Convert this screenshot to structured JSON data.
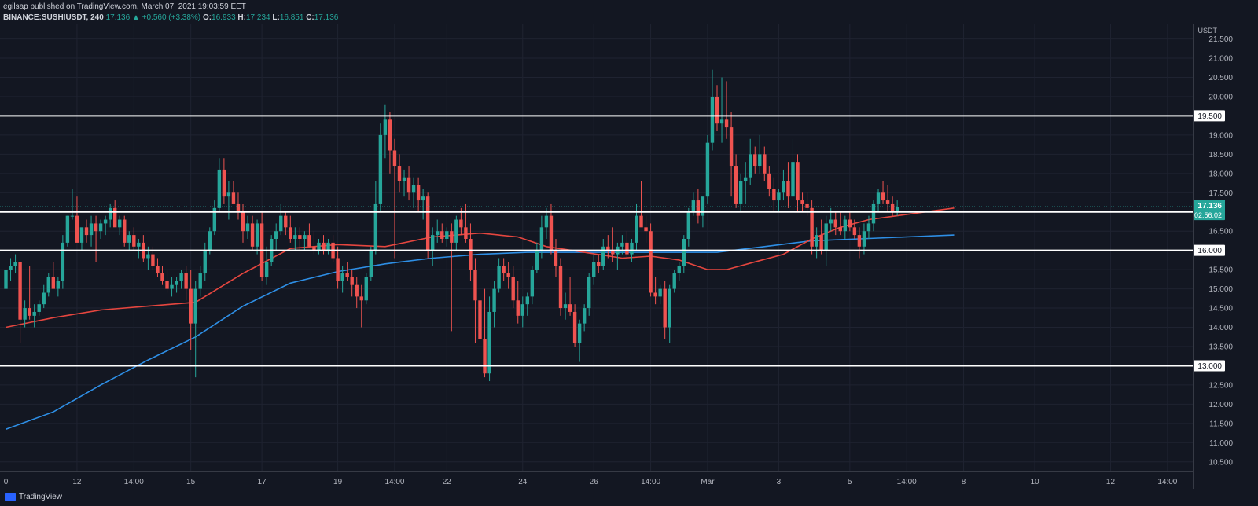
{
  "header": {
    "line1": "egilsap published on TradingView.com, March 07, 2021 19:03:59 EET",
    "symbol": "BINANCE:SUSHIUSDT, 240",
    "last": "17.136",
    "change": "▲ +0.560 (+3.38%)",
    "o_label": "O:",
    "o": "16.933",
    "h_label": "H:",
    "h": "17.234",
    "l_label": "L:",
    "l": "16.851",
    "c_label": "C:",
    "c": "17.136"
  },
  "footer": {
    "brand": "TradingView"
  },
  "colors": {
    "background": "#131722",
    "grid": "#1f2331",
    "up": "#26a69a",
    "down": "#ef5350",
    "ma_short": "#e5463f",
    "ma_long": "#2e8fe6",
    "level_line": "#ffffff",
    "price_tag": "#26a69a"
  },
  "chart_data": {
    "type": "candlestick",
    "symbol": "BINANCE:SUSHIUSDT",
    "interval": "240",
    "currency": "USDT",
    "ylim": [
      10.25,
      21.9
    ],
    "y_ticks": [
      "10.500",
      "11.000",
      "11.500",
      "12.000",
      "12.500",
      "13.000",
      "13.500",
      "14.000",
      "14.500",
      "15.000",
      "15.500",
      "16.000",
      "16.500",
      "17.000",
      "17.500",
      "18.000",
      "18.500",
      "19.000",
      "19.500",
      "20.000",
      "20.500",
      "21.000",
      "21.500"
    ],
    "x_ticks": [
      {
        "label": "0",
        "i": 0
      },
      {
        "label": "12",
        "i": 15
      },
      {
        "label": "14:00",
        "i": 27
      },
      {
        "label": "15",
        "i": 39
      },
      {
        "label": "17",
        "i": 54
      },
      {
        "label": "19",
        "i": 70
      },
      {
        "label": "14:00",
        "i": 82
      },
      {
        "label": "22",
        "i": 93
      },
      {
        "label": "24",
        "i": 109
      },
      {
        "label": "26",
        "i": 124
      },
      {
        "label": "14:00",
        "i": 136
      },
      {
        "label": "Mar",
        "i": 148
      },
      {
        "label": "3",
        "i": 163
      },
      {
        "label": "5",
        "i": 178
      },
      {
        "label": "14:00",
        "i": 190
      },
      {
        "label": "8",
        "i": 202
      },
      {
        "label": "10",
        "i": 217
      },
      {
        "label": "12",
        "i": 233
      },
      {
        "label": "14:00",
        "i": 245
      }
    ],
    "levels": [
      19.5,
      17.136,
      17.0,
      16.0,
      13.0
    ],
    "level_labels": [
      "19.500",
      "17.000",
      "16.000",
      "13.000"
    ],
    "last_price": "17.136",
    "countdown": "02:56:02",
    "candles": [
      [
        15.0,
        15.6,
        14.5,
        15.5
      ],
      [
        15.5,
        15.8,
        15.2,
        15.6
      ],
      [
        15.6,
        15.9,
        15.4,
        15.7
      ],
      [
        15.7,
        15.7,
        13.6,
        14.2
      ],
      [
        14.2,
        14.7,
        14.0,
        14.5
      ],
      [
        14.5,
        15.6,
        14.2,
        14.3
      ],
      [
        14.3,
        14.6,
        14.0,
        14.4
      ],
      [
        14.4,
        14.7,
        14.3,
        14.6
      ],
      [
        14.6,
        15.1,
        14.5,
        14.9
      ],
      [
        14.9,
        15.4,
        14.8,
        15.3
      ],
      [
        15.3,
        15.7,
        15.1,
        15.0
      ],
      [
        15.0,
        15.3,
        14.8,
        15.2
      ],
      [
        15.2,
        16.4,
        15.0,
        16.2
      ],
      [
        16.2,
        16.9,
        16.1,
        16.9
      ],
      [
        16.9,
        17.6,
        16.8,
        16.9
      ],
      [
        16.9,
        17.4,
        16.2,
        16.2
      ],
      [
        16.2,
        16.5,
        16.0,
        16.6
      ],
      [
        16.6,
        16.8,
        16.2,
        16.4
      ],
      [
        16.4,
        16.9,
        16.1,
        16.7
      ],
      [
        16.7,
        16.9,
        15.7,
        16.5
      ],
      [
        16.5,
        16.8,
        16.3,
        16.7
      ],
      [
        16.7,
        16.9,
        16.4,
        16.8
      ],
      [
        16.8,
        17.2,
        16.6,
        17.1
      ],
      [
        17.1,
        17.3,
        16.7,
        16.6
      ],
      [
        16.6,
        16.9,
        16.4,
        16.8
      ],
      [
        16.8,
        16.9,
        16.1,
        16.2
      ],
      [
        16.2,
        16.5,
        16.0,
        16.4
      ],
      [
        16.4,
        16.6,
        16.0,
        16.1
      ],
      [
        16.1,
        16.3,
        15.8,
        16.2
      ],
      [
        16.2,
        16.4,
        15.7,
        15.8
      ],
      [
        15.8,
        16.1,
        15.5,
        15.9
      ],
      [
        15.9,
        16.1,
        15.5,
        15.6
      ],
      [
        15.6,
        15.8,
        15.3,
        15.4
      ],
      [
        15.4,
        15.6,
        15.1,
        15.2
      ],
      [
        15.2,
        15.5,
        14.9,
        15.0
      ],
      [
        15.0,
        15.3,
        14.8,
        15.1
      ],
      [
        15.1,
        15.3,
        14.9,
        15.2
      ],
      [
        15.2,
        15.5,
        15.0,
        15.4
      ],
      [
        15.4,
        15.6,
        14.7,
        15.0
      ],
      [
        15.0,
        15.5,
        13.4,
        14.1
      ],
      [
        14.1,
        15.2,
        12.7,
        15.0
      ],
      [
        15.0,
        15.6,
        14.8,
        15.4
      ],
      [
        15.4,
        16.2,
        15.2,
        16.0
      ],
      [
        16.0,
        16.6,
        15.9,
        16.5
      ],
      [
        16.5,
        17.3,
        16.4,
        17.1
      ],
      [
        17.1,
        18.4,
        17.0,
        18.1
      ],
      [
        18.1,
        18.4,
        17.2,
        17.4
      ],
      [
        17.4,
        17.8,
        16.8,
        17.5
      ],
      [
        17.5,
        17.8,
        17.3,
        17.2
      ],
      [
        17.2,
        17.5,
        16.8,
        17.0
      ],
      [
        17.0,
        17.2,
        16.2,
        16.5
      ],
      [
        16.5,
        16.9,
        16.3,
        16.7
      ],
      [
        16.7,
        16.9,
        16.0,
        16.1
      ],
      [
        16.1,
        16.8,
        15.9,
        16.7
      ],
      [
        16.7,
        17.0,
        15.2,
        15.3
      ],
      [
        15.3,
        16.1,
        15.1,
        15.7
      ],
      [
        15.7,
        16.4,
        15.6,
        16.3
      ],
      [
        16.3,
        16.7,
        16.0,
        16.5
      ],
      [
        16.5,
        17.2,
        16.4,
        16.9
      ],
      [
        16.9,
        17.0,
        16.4,
        16.6
      ],
      [
        16.6,
        16.9,
        16.2,
        16.3
      ],
      [
        16.3,
        16.6,
        16.0,
        16.4
      ],
      [
        16.4,
        16.6,
        16.0,
        16.3
      ],
      [
        16.3,
        16.5,
        16.0,
        16.4
      ],
      [
        16.4,
        16.7,
        16.1,
        16.1
      ],
      [
        16.1,
        16.5,
        15.9,
        16.0
      ],
      [
        16.0,
        16.3,
        15.9,
        16.2
      ],
      [
        16.2,
        16.4,
        15.9,
        16.0
      ],
      [
        16.0,
        16.3,
        15.9,
        16.2
      ],
      [
        16.2,
        16.4,
        15.7,
        15.8
      ],
      [
        15.8,
        16.1,
        15.0,
        15.2
      ],
      [
        15.2,
        15.6,
        14.9,
        15.4
      ],
      [
        15.4,
        15.7,
        15.2,
        15.3
      ],
      [
        15.3,
        15.5,
        14.8,
        15.1
      ],
      [
        15.1,
        15.3,
        14.5,
        14.8
      ],
      [
        14.8,
        15.1,
        14.0,
        14.7
      ],
      [
        14.7,
        15.4,
        14.6,
        15.3
      ],
      [
        15.3,
        16.1,
        15.2,
        16.0
      ],
      [
        16.0,
        17.8,
        15.9,
        17.2
      ],
      [
        17.2,
        19.3,
        17.0,
        19.0
      ],
      [
        19.0,
        19.8,
        18.4,
        19.4
      ],
      [
        19.4,
        19.6,
        18.0,
        18.6
      ],
      [
        18.6,
        18.9,
        15.8,
        18.2
      ],
      [
        18.2,
        18.5,
        17.5,
        17.8
      ],
      [
        17.8,
        18.1,
        17.4,
        17.9
      ],
      [
        17.9,
        18.2,
        17.3,
        17.5
      ],
      [
        17.5,
        17.9,
        17.1,
        17.7
      ],
      [
        17.7,
        17.9,
        17.0,
        17.3
      ],
      [
        17.3,
        17.6,
        16.8,
        17.4
      ],
      [
        17.4,
        17.5,
        15.8,
        16.0
      ],
      [
        16.0,
        16.6,
        15.6,
        16.4
      ],
      [
        16.4,
        16.8,
        16.2,
        16.5
      ],
      [
        16.5,
        16.7,
        16.2,
        16.3
      ],
      [
        16.3,
        16.6,
        16.1,
        16.5
      ],
      [
        16.5,
        16.7,
        13.9,
        16.2
      ],
      [
        16.2,
        16.9,
        16.0,
        16.8
      ],
      [
        16.8,
        17.1,
        16.4,
        16.6
      ],
      [
        16.6,
        17.2,
        16.2,
        16.3
      ],
      [
        16.3,
        16.7,
        15.2,
        15.5
      ],
      [
        15.5,
        15.8,
        13.6,
        14.7
      ],
      [
        14.7,
        15.0,
        11.6,
        13.7
      ],
      [
        13.7,
        15.0,
        12.7,
        12.8
      ],
      [
        12.8,
        14.8,
        12.6,
        14.4
      ],
      [
        14.4,
        15.2,
        14.0,
        15.0
      ],
      [
        15.0,
        15.8,
        14.9,
        15.6
      ],
      [
        15.6,
        15.8,
        15.2,
        15.4
      ],
      [
        15.4,
        15.7,
        15.0,
        15.3
      ],
      [
        15.3,
        15.6,
        14.5,
        14.7
      ],
      [
        14.7,
        15.2,
        14.1,
        14.3
      ],
      [
        14.3,
        14.8,
        14.0,
        14.6
      ],
      [
        14.6,
        14.9,
        14.3,
        14.8
      ],
      [
        14.8,
        15.6,
        14.6,
        15.5
      ],
      [
        15.5,
        16.2,
        15.4,
        16.0
      ],
      [
        16.0,
        16.9,
        15.8,
        16.6
      ],
      [
        16.6,
        17.1,
        16.3,
        16.9
      ],
      [
        16.9,
        17.2,
        15.9,
        16.0
      ],
      [
        16.0,
        16.3,
        15.3,
        15.6
      ],
      [
        15.6,
        15.8,
        14.3,
        14.5
      ],
      [
        14.5,
        14.9,
        14.2,
        14.6
      ],
      [
        14.6,
        15.3,
        14.3,
        14.4
      ],
      [
        14.4,
        14.6,
        13.5,
        13.6
      ],
      [
        13.6,
        14.2,
        13.1,
        14.1
      ],
      [
        14.1,
        14.6,
        13.9,
        14.5
      ],
      [
        14.5,
        15.4,
        14.3,
        15.3
      ],
      [
        15.3,
        15.9,
        15.1,
        15.7
      ],
      [
        15.7,
        15.9,
        15.4,
        15.6
      ],
      [
        15.6,
        16.3,
        15.5,
        16.1
      ],
      [
        16.1,
        16.4,
        15.8,
        16.0
      ],
      [
        16.0,
        16.6,
        15.7,
        15.9
      ],
      [
        15.9,
        16.2,
        15.5,
        16.1
      ],
      [
        16.1,
        16.4,
        15.9,
        16.2
      ],
      [
        16.2,
        16.5,
        15.8,
        15.9
      ],
      [
        15.9,
        16.3,
        15.7,
        16.2
      ],
      [
        16.2,
        17.2,
        16.0,
        16.9
      ],
      [
        16.9,
        17.8,
        16.7,
        16.6
      ],
      [
        16.6,
        16.9,
        16.2,
        16.5
      ],
      [
        16.5,
        16.7,
        14.8,
        14.9
      ],
      [
        14.9,
        15.3,
        14.6,
        14.8
      ],
      [
        14.8,
        15.1,
        14.6,
        15.0
      ],
      [
        15.0,
        15.2,
        13.7,
        14.0
      ],
      [
        14.0,
        15.1,
        13.6,
        15.0
      ],
      [
        15.0,
        15.5,
        14.9,
        15.4
      ],
      [
        15.4,
        15.7,
        15.2,
        15.6
      ],
      [
        15.6,
        16.4,
        15.4,
        16.3
      ],
      [
        16.3,
        17.1,
        16.1,
        17.0
      ],
      [
        17.0,
        17.5,
        16.9,
        17.3
      ],
      [
        17.3,
        17.6,
        16.7,
        16.9
      ],
      [
        16.9,
        17.3,
        16.6,
        17.4
      ],
      [
        17.4,
        19.0,
        17.2,
        18.8
      ],
      [
        18.8,
        20.7,
        18.6,
        20.0
      ],
      [
        20.0,
        20.3,
        19.1,
        19.3
      ],
      [
        19.3,
        20.5,
        18.8,
        19.4
      ],
      [
        19.4,
        20.4,
        18.9,
        19.2
      ],
      [
        19.2,
        19.6,
        17.4,
        18.2
      ],
      [
        18.2,
        18.5,
        17.1,
        17.2
      ],
      [
        17.2,
        18.0,
        17.0,
        17.8
      ],
      [
        17.8,
        18.3,
        17.2,
        17.9
      ],
      [
        17.9,
        18.9,
        17.7,
        18.5
      ],
      [
        18.5,
        18.7,
        18.0,
        18.2
      ],
      [
        18.2,
        19.0,
        18.0,
        18.5
      ],
      [
        18.5,
        18.7,
        17.8,
        18.0
      ],
      [
        18.0,
        18.2,
        17.4,
        17.6
      ],
      [
        17.6,
        17.9,
        17.0,
        17.3
      ],
      [
        17.3,
        17.6,
        17.0,
        17.5
      ],
      [
        17.5,
        18.1,
        17.3,
        17.8
      ],
      [
        17.8,
        18.3,
        17.1,
        17.4
      ],
      [
        17.4,
        18.9,
        17.3,
        18.3
      ],
      [
        18.3,
        18.5,
        17.0,
        17.3
      ],
      [
        17.3,
        17.5,
        17.0,
        17.2
      ],
      [
        17.2,
        17.5,
        16.9,
        17.1
      ],
      [
        17.1,
        17.3,
        15.9,
        16.1
      ],
      [
        16.1,
        16.6,
        15.8,
        16.4
      ],
      [
        16.4,
        16.8,
        15.9,
        16.0
      ],
      [
        16.0,
        16.9,
        15.6,
        16.7
      ],
      [
        16.7,
        17.1,
        16.5,
        16.8
      ],
      [
        16.8,
        17.0,
        16.4,
        16.6
      ],
      [
        16.6,
        17.0,
        16.4,
        16.5
      ],
      [
        16.5,
        16.9,
        16.3,
        16.8
      ],
      [
        16.8,
        17.0,
        16.5,
        16.6
      ],
      [
        16.6,
        16.8,
        16.3,
        16.4
      ],
      [
        16.4,
        16.6,
        15.8,
        16.1
      ],
      [
        16.1,
        16.7,
        15.9,
        16.5
      ],
      [
        16.5,
        16.9,
        16.3,
        16.7
      ],
      [
        16.7,
        17.3,
        16.5,
        17.2
      ],
      [
        17.2,
        17.6,
        17.0,
        17.5
      ],
      [
        17.5,
        17.8,
        17.2,
        17.3
      ],
      [
        17.3,
        17.7,
        17.0,
        17.2
      ],
      [
        17.2,
        17.4,
        16.9,
        17.0
      ],
      [
        17.0,
        17.3,
        16.9,
        17.136
      ]
    ],
    "ma_short": [
      [
        0,
        14.0
      ],
      [
        10,
        14.25
      ],
      [
        20,
        14.45
      ],
      [
        30,
        14.55
      ],
      [
        40,
        14.65
      ],
      [
        50,
        15.4
      ],
      [
        60,
        16.05
      ],
      [
        70,
        16.15
      ],
      [
        80,
        16.1
      ],
      [
        90,
        16.35
      ],
      [
        100,
        16.45
      ],
      [
        108,
        16.35
      ],
      [
        114,
        16.1
      ],
      [
        122,
        15.95
      ],
      [
        130,
        15.8
      ],
      [
        136,
        15.85
      ],
      [
        142,
        15.75
      ],
      [
        148,
        15.5
      ],
      [
        152,
        15.5
      ],
      [
        158,
        15.7
      ],
      [
        164,
        15.9
      ],
      [
        170,
        16.3
      ],
      [
        176,
        16.6
      ],
      [
        182,
        16.8
      ],
      [
        188,
        16.9
      ],
      [
        194,
        17.0
      ],
      [
        200,
        17.1
      ]
    ],
    "ma_long": [
      [
        0,
        11.35
      ],
      [
        10,
        11.8
      ],
      [
        20,
        12.5
      ],
      [
        30,
        13.15
      ],
      [
        40,
        13.75
      ],
      [
        50,
        14.55
      ],
      [
        60,
        15.15
      ],
      [
        70,
        15.45
      ],
      [
        80,
        15.65
      ],
      [
        90,
        15.8
      ],
      [
        100,
        15.9
      ],
      [
        110,
        15.95
      ],
      [
        120,
        15.95
      ],
      [
        130,
        15.95
      ],
      [
        140,
        15.95
      ],
      [
        150,
        15.95
      ],
      [
        160,
        16.1
      ],
      [
        170,
        16.25
      ],
      [
        180,
        16.3
      ],
      [
        190,
        16.35
      ],
      [
        200,
        16.4
      ]
    ]
  }
}
